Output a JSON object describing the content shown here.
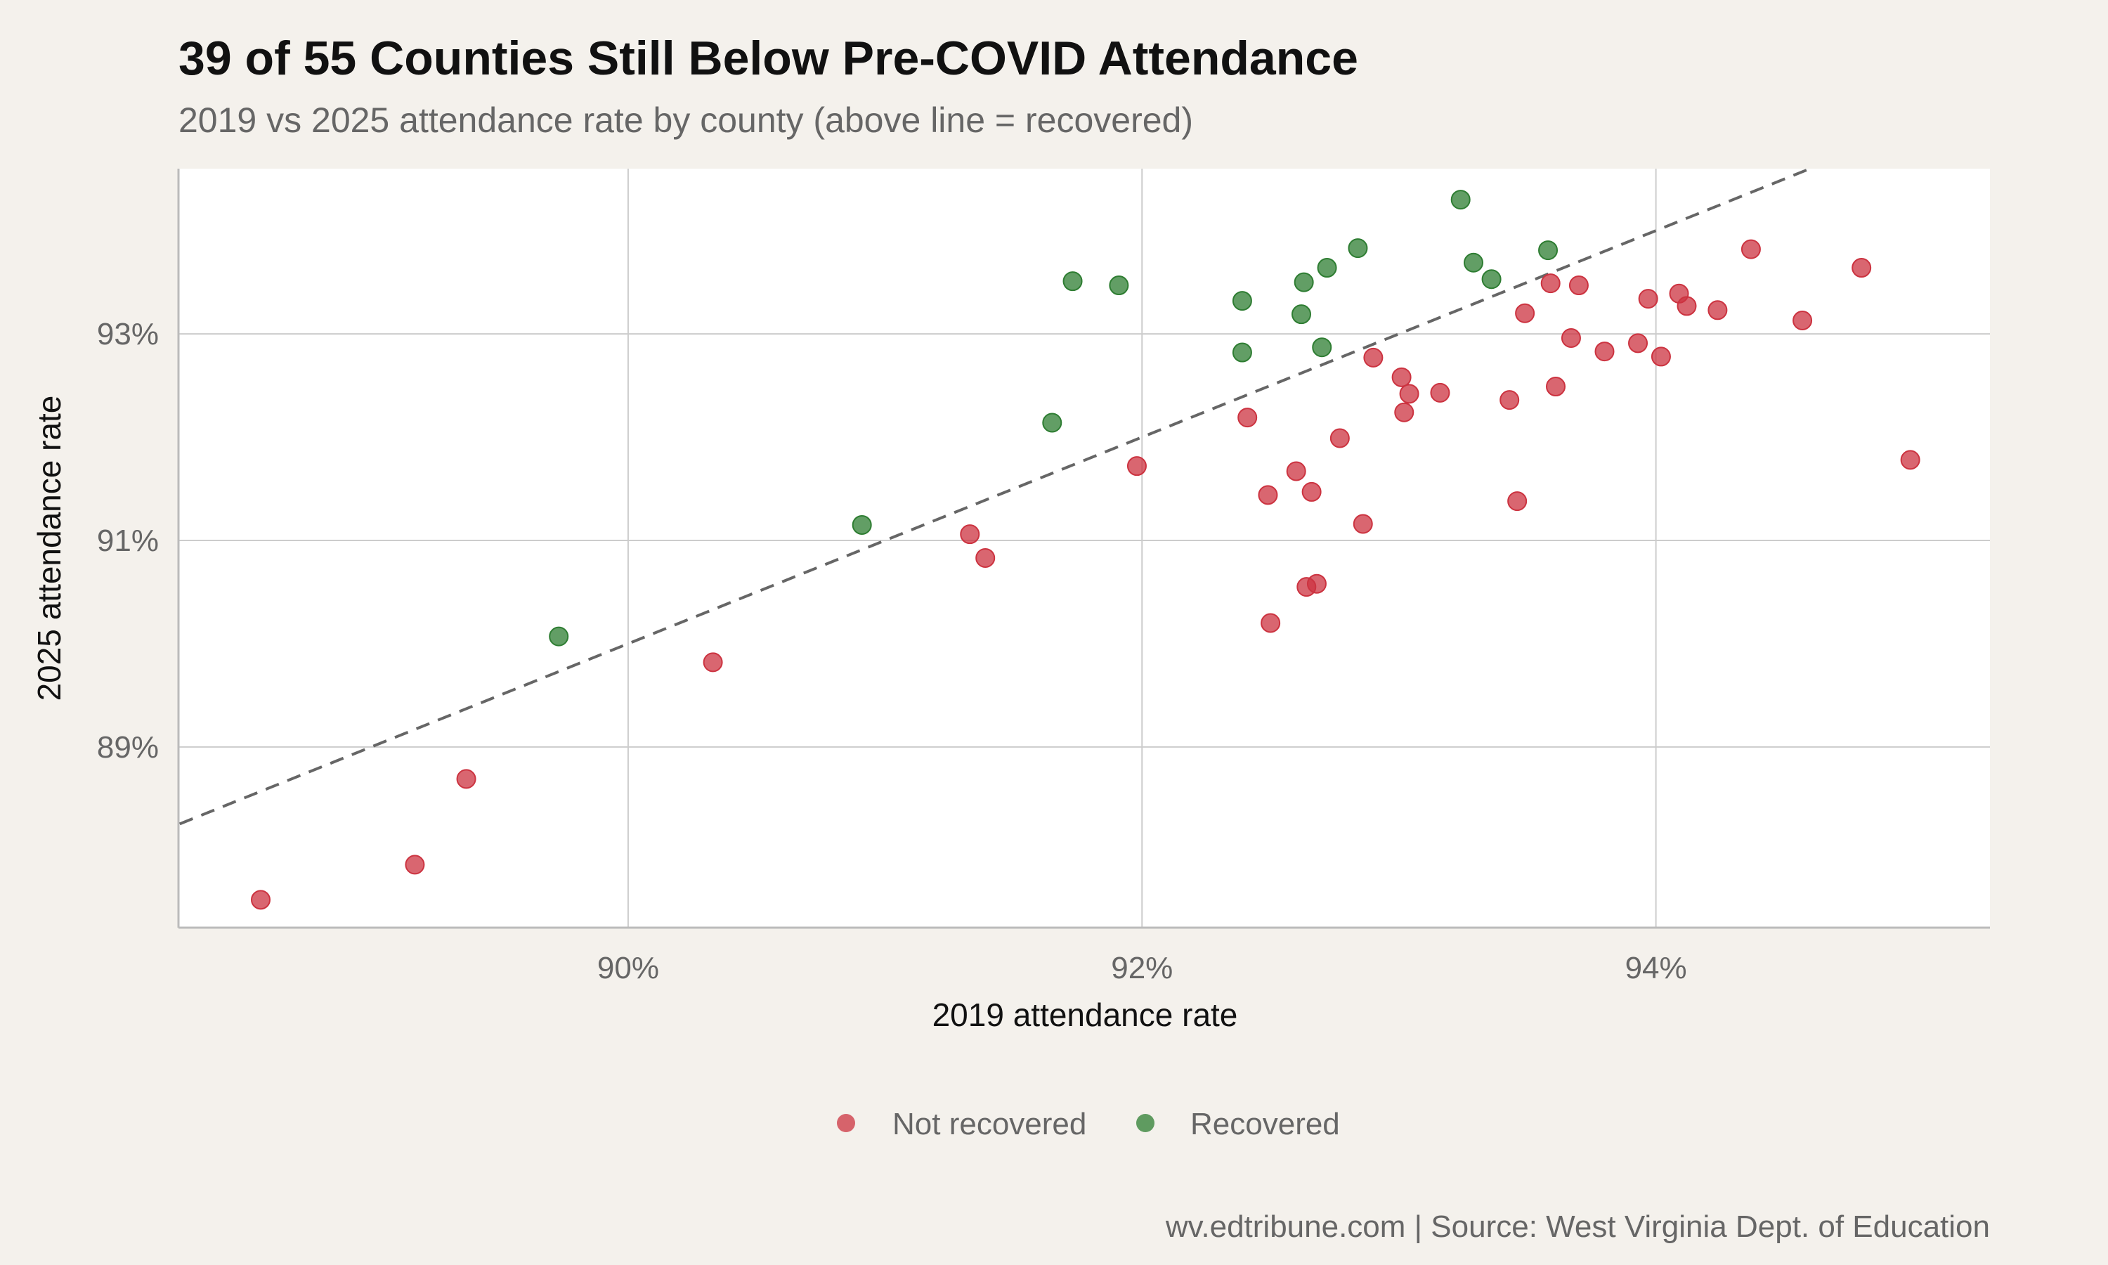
{
  "title": "39 of 55 Counties Still Below Pre-COVID Attendance",
  "subtitle": "2019 vs 2025 attendance rate by county (above line = recovered)",
  "caption": "wv.edtribune.com | Source: West Virginia Dept. of Education",
  "colors": {
    "page_background": "#f4f1ec",
    "plot_background": "#ffffff",
    "grid": "#cccccc",
    "axis": "#bbbbbb",
    "reference_line": "#666666",
    "not_recovered": "#cc3340",
    "recovered": "#2e7d32"
  },
  "chart_data": {
    "type": "scatter",
    "title": "39 of 55 Counties Still Below Pre-COVID Attendance",
    "subtitle": "2019 vs 2025 attendance rate by county (above line = recovered)",
    "xlabel": "2019 attendance rate",
    "ylabel": "2025 attendance rate",
    "xlim": [
      88.25,
      95.3
    ],
    "ylim": [
      87.25,
      94.6
    ],
    "x_ticks": [
      90,
      92,
      94
    ],
    "x_tick_labels": [
      "90%",
      "92%",
      "94%"
    ],
    "y_ticks": [
      89,
      91,
      93
    ],
    "y_tick_labels": [
      "89%",
      "91%",
      "93%"
    ],
    "grid": true,
    "reference_line": {
      "label": "y = x",
      "style": "dashed"
    },
    "legend": {
      "position": "bottom",
      "entries": [
        {
          "label": "Not recovered",
          "series": "not_recovered"
        },
        {
          "label": "Recovered",
          "series": "recovered"
        }
      ]
    },
    "series": [
      {
        "key": "not_recovered",
        "name": "Not recovered",
        "points": [
          [
            88.57,
            87.52
          ],
          [
            89.17,
            87.86
          ],
          [
            89.37,
            88.69
          ],
          [
            90.33,
            89.82
          ],
          [
            91.33,
            91.06
          ],
          [
            91.39,
            90.83
          ],
          [
            91.98,
            91.72
          ],
          [
            92.41,
            92.19
          ],
          [
            92.49,
            91.44
          ],
          [
            92.5,
            90.2
          ],
          [
            92.6,
            91.67
          ],
          [
            92.64,
            90.55
          ],
          [
            92.66,
            91.47
          ],
          [
            92.68,
            90.58
          ],
          [
            92.77,
            91.99
          ],
          [
            92.86,
            91.16
          ],
          [
            92.9,
            92.77
          ],
          [
            93.01,
            92.58
          ],
          [
            93.02,
            92.24
          ],
          [
            93.04,
            92.42
          ],
          [
            93.16,
            92.43
          ],
          [
            93.43,
            92.36
          ],
          [
            93.46,
            91.38
          ],
          [
            93.49,
            93.2
          ],
          [
            93.59,
            93.49
          ],
          [
            93.61,
            92.49
          ],
          [
            93.67,
            92.96
          ],
          [
            93.7,
            93.47
          ],
          [
            93.8,
            92.83
          ],
          [
            93.93,
            92.91
          ],
          [
            93.97,
            93.34
          ],
          [
            94.02,
            92.78
          ],
          [
            94.09,
            93.39
          ],
          [
            94.12,
            93.27
          ],
          [
            94.24,
            93.23
          ],
          [
            94.37,
            93.82
          ],
          [
            94.57,
            93.13
          ],
          [
            94.8,
            93.64
          ],
          [
            94.99,
            91.78
          ]
        ]
      },
      {
        "key": "recovered",
        "name": "Recovered",
        "points": [
          [
            89.73,
            90.07
          ],
          [
            90.91,
            91.15
          ],
          [
            91.65,
            92.14
          ],
          [
            91.73,
            93.51
          ],
          [
            91.91,
            93.47
          ],
          [
            92.39,
            93.32
          ],
          [
            92.39,
            92.82
          ],
          [
            92.62,
            93.19
          ],
          [
            92.63,
            93.5
          ],
          [
            92.7,
            92.87
          ],
          [
            92.72,
            93.64
          ],
          [
            92.84,
            93.83
          ],
          [
            93.24,
            94.3
          ],
          [
            93.29,
            93.69
          ],
          [
            93.36,
            93.53
          ],
          [
            93.58,
            93.81
          ]
        ]
      }
    ]
  }
}
